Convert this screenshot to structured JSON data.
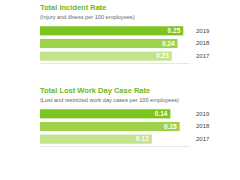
{
  "chart_data": [
    {
      "type": "bar",
      "orientation": "horizontal",
      "title": "Total Incident Rate",
      "subtitle": "(Injury and illness per 100 employees)",
      "categories": [
        "2019",
        "2018",
        "2017"
      ],
      "values": [
        0.25,
        0.24,
        0.23
      ],
      "colors": [
        "#7cc41f",
        "#9fd24b",
        "#c3e38c"
      ],
      "xlim": [
        0,
        0.26
      ],
      "data_labels": true,
      "tick_labels": "y"
    },
    {
      "type": "bar",
      "orientation": "horizontal",
      "title": "Total Lost Work Day Case Rate",
      "subtitle": "(Lost and restricted work day cases per 100 employees)",
      "categories": [
        "2019",
        "2018",
        "2017"
      ],
      "values": [
        0.14,
        0.15,
        0.12
      ],
      "colors": [
        "#7cc41f",
        "#9fd24b",
        "#c3e38c"
      ],
      "xlim": [
        0,
        0.16
      ],
      "data_labels": true,
      "tick_labels": "y"
    }
  ]
}
